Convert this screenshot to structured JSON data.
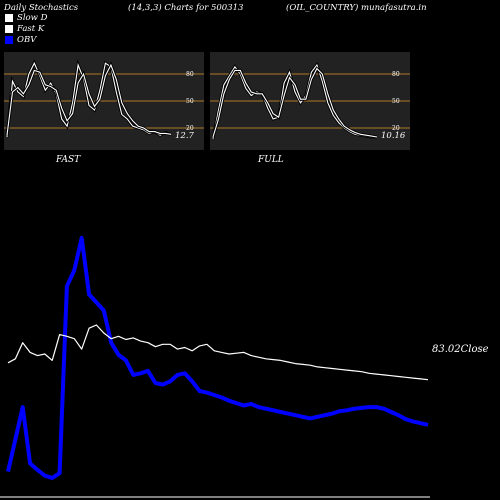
{
  "header": {
    "left": "Daily Stochastics",
    "middle": "(14,3,3) Charts for 500313",
    "right": "(OIL_COUNTRY) munafasutra.in"
  },
  "legend": [
    {
      "label": "Slow  D",
      "color": "#ffffff"
    },
    {
      "label": "Fast K",
      "color": "#ffffff"
    },
    {
      "label": "OBV",
      "color": "#0000ff"
    }
  ],
  "colors": {
    "background": "#000000",
    "panel": "#222222",
    "level_line": "#b07a28",
    "obv": "#0000ff",
    "price": "#ffffff"
  },
  "chart_data": [
    {
      "type": "line",
      "title": "FAST",
      "ylim": [
        0,
        100
      ],
      "levels": [
        20,
        50,
        80
      ],
      "last_value_label": "12.7",
      "series": [
        {
          "name": "Fast K",
          "values": [
            10,
            72,
            60,
            55,
            80,
            92,
            78,
            62,
            70,
            58,
            30,
            22,
            48,
            90,
            75,
            45,
            40,
            62,
            92,
            88,
            60,
            35,
            30,
            22,
            20,
            18,
            14,
            16,
            12,
            15,
            13
          ]
        },
        {
          "name": "Slow  D",
          "values": [
            12,
            60,
            65,
            58,
            68,
            84,
            82,
            68,
            66,
            62,
            42,
            28,
            36,
            70,
            80,
            58,
            44,
            52,
            78,
            90,
            74,
            48,
            36,
            28,
            22,
            20,
            16,
            16,
            14,
            14,
            13
          ]
        }
      ]
    },
    {
      "type": "line",
      "title": "FULL",
      "ylim": [
        0,
        100
      ],
      "levels": [
        20,
        50,
        80
      ],
      "last_value_label": "10.16",
      "series": [
        {
          "name": "Fast K",
          "values": [
            8,
            40,
            68,
            78,
            88,
            80,
            64,
            56,
            60,
            58,
            42,
            30,
            32,
            70,
            82,
            60,
            48,
            56,
            82,
            90,
            72,
            48,
            34,
            26,
            20,
            16,
            13,
            12,
            11,
            10,
            10
          ]
        },
        {
          "name": "Slow  D",
          "values": [
            10,
            30,
            58,
            74,
            84,
            84,
            70,
            60,
            58,
            58,
            48,
            36,
            32,
            56,
            76,
            68,
            52,
            52,
            74,
            86,
            80,
            58,
            40,
            30,
            22,
            18,
            15,
            13,
            12,
            11,
            10
          ]
        }
      ]
    },
    {
      "type": "line",
      "title": "",
      "close_label": "83.02Close",
      "series": [
        {
          "name": "OBV",
          "values": [
            -180,
            -140,
            -100,
            -170,
            -178,
            -185,
            -188,
            -182,
            50,
            70,
            110,
            40,
            30,
            20,
            -20,
            -35,
            -42,
            -60,
            -58,
            -55,
            -70,
            -72,
            -68,
            -60,
            -58,
            -68,
            -80,
            -82,
            -85,
            -88,
            -92,
            -95,
            -98,
            -96,
            -100,
            -102,
            -104,
            -106,
            -108,
            -110,
            -112,
            -114,
            -112,
            -110,
            -108,
            -105,
            -104,
            -102,
            -101,
            -100,
            -100,
            -102,
            -106,
            -110,
            -115,
            -118,
            -120,
            -122
          ]
        },
        {
          "name": "Price",
          "values": [
            -45,
            -40,
            -20,
            -32,
            -36,
            -34,
            -42,
            -10,
            -12,
            -15,
            -28,
            -2,
            2,
            -8,
            -15,
            -12,
            -16,
            -14,
            -18,
            -20,
            -25,
            -22,
            -22,
            -28,
            -26,
            -30,
            -24,
            -22,
            -30,
            -32,
            -34,
            -33,
            -32,
            -36,
            -38,
            -40,
            -41,
            -42,
            -44,
            -46,
            -47,
            -48,
            -50,
            -51,
            -52,
            -53,
            -54,
            -55,
            -56,
            -58,
            -59,
            -60,
            -61,
            -62,
            -63,
            -64,
            -65,
            -66
          ]
        }
      ]
    }
  ]
}
